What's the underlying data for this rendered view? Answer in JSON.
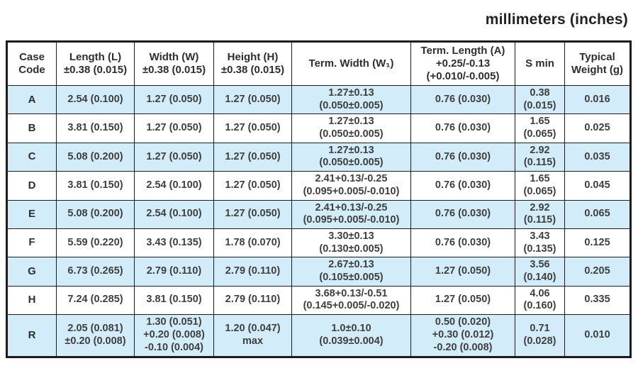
{
  "title": "millimeters (inches)",
  "colors": {
    "row_shade": "#d3ecf9",
    "border": "#1c1c1c",
    "text": "#3f3f3f"
  },
  "table": {
    "headers": [
      "Case\nCode",
      "Length (L)\n±0.38 (0.015)",
      "Width (W)\n±0.38 (0.015)",
      "Height (H)\n±0.38 (0.015)",
      "Term. Width (W₁)",
      "Term. Length (A)\n+0.25/-0.13\n(+0.010/-0.005)",
      "S min",
      "Typical\nWeight (g)"
    ],
    "rows": [
      {
        "shaded": true,
        "tall": false,
        "cells": [
          "A",
          "2.54 (0.100)",
          "1.27 (0.050)",
          "1.27 (0.050)",
          "1.27±0.13\n(0.050±0.005)",
          "0.76 (0.030)",
          "0.38\n(0.015)",
          "0.016"
        ]
      },
      {
        "shaded": false,
        "tall": false,
        "cells": [
          "B",
          "3.81 (0.150)",
          "1.27 (0.050)",
          "1.27 (0.050)",
          "1.27±0.13\n(0.050±0.005)",
          "0.76 (0.030)",
          "1.65\n(0.065)",
          "0.025"
        ]
      },
      {
        "shaded": true,
        "tall": false,
        "cells": [
          "C",
          "5.08 (0.200)",
          "1.27 (0.050)",
          "1.27 (0.050)",
          "1.27±0.13\n(0.050±0.005)",
          "0.76 (0.030)",
          "2.92\n(0.115)",
          "0.035"
        ]
      },
      {
        "shaded": false,
        "tall": false,
        "cells": [
          "D",
          "3.81 (0.150)",
          "2.54 (0.100)",
          "1.27 (0.050)",
          "2.41+0.13/-0.25\n(0.095+0.005/-0.010)",
          "0.76 (0.030)",
          "1.65\n(0.065)",
          "0.045"
        ]
      },
      {
        "shaded": true,
        "tall": false,
        "cells": [
          "E",
          "5.08 (0.200)",
          "2.54 (0.100)",
          "1.27 (0.050)",
          "2.41+0.13/-0.25\n(0.095+0.005/-0.010)",
          "0.76 (0.030)",
          "2.92\n(0.115)",
          "0.065"
        ]
      },
      {
        "shaded": false,
        "tall": false,
        "cells": [
          "F",
          "5.59 (0.220)",
          "3.43 (0.135)",
          "1.78 (0.070)",
          "3.30±0.13\n(0.130±0.005)",
          "0.76 (0.030)",
          "3.43\n(0.135)",
          "0.125"
        ]
      },
      {
        "shaded": true,
        "tall": false,
        "cells": [
          "G",
          "6.73 (0.265)",
          "2.79 (0.110)",
          "2.79 (0.110)",
          "2.67±0.13\n(0.105±0.005)",
          "1.27 (0.050)",
          "3.56\n(0.140)",
          "0.205"
        ]
      },
      {
        "shaded": false,
        "tall": false,
        "cells": [
          "H",
          "7.24 (0.285)",
          "3.81 (0.150)",
          "2.79 (0.110)",
          "3.68+0.13/-0.51\n(0.145+0.005/-0.020)",
          "1.27 (0.050)",
          "4.06\n(0.160)",
          "0.335"
        ]
      },
      {
        "shaded": true,
        "tall": true,
        "cells": [
          "R",
          "2.05 (0.081)\n±0.20 (0.008)",
          "1.30 (0.051)\n+0.20 (0.008)\n-0.10 (0.004)",
          "1.20 (0.047)\nmax",
          "1.0±0.10\n(0.039±0.004)",
          "0.50 (0.020)\n+0.30 (0.012)\n-0.20 (0.008)",
          "0.71\n(0.028)",
          "0.010"
        ]
      }
    ]
  }
}
